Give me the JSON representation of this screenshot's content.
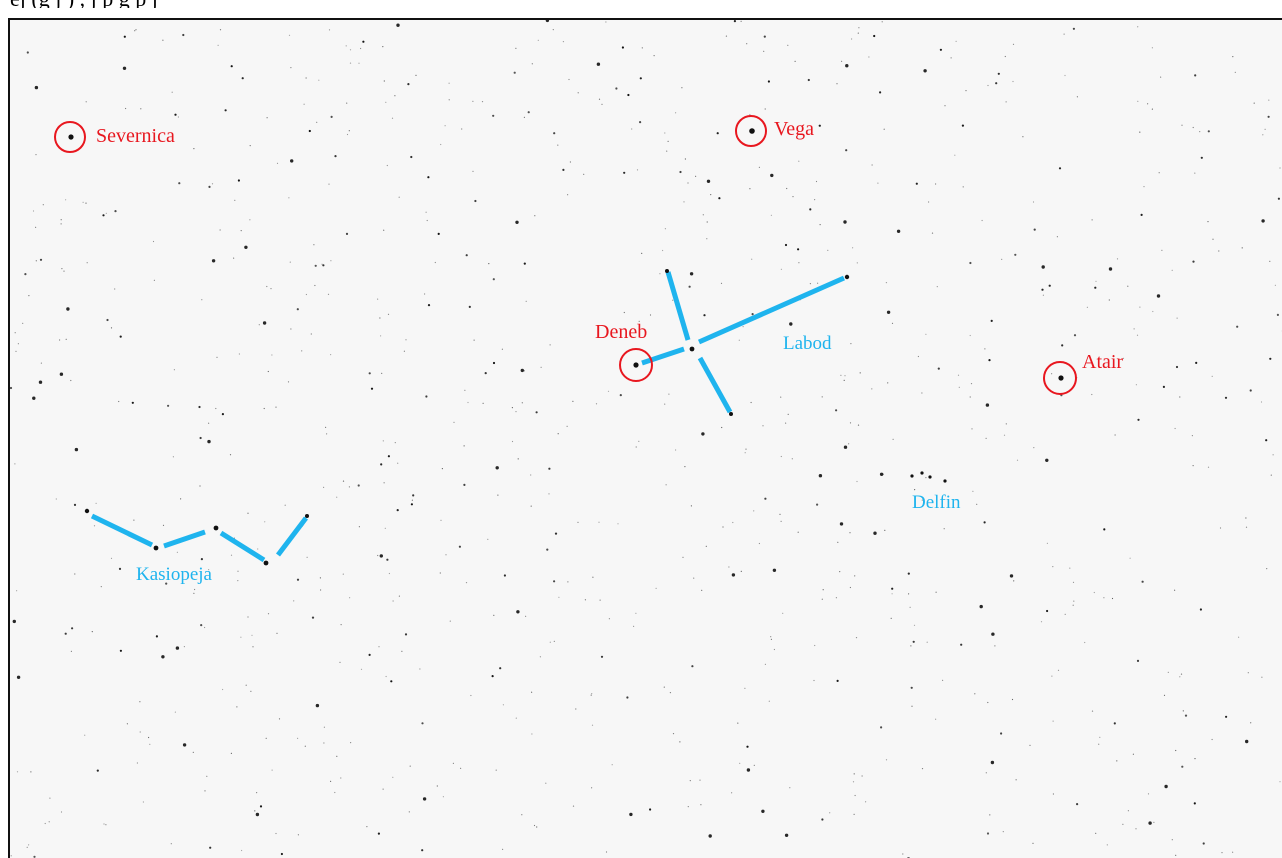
{
  "caption": "ej (g j ) , j p g p j",
  "colors": {
    "star_label": "#e8171f",
    "constellation": "#1fb4ee",
    "star": "#111111",
    "sky": "#f7f7f7"
  },
  "stars": [
    {
      "name": "Severnica"
    },
    {
      "name": "Vega"
    },
    {
      "name": "Deneb"
    },
    {
      "name": "Atair"
    }
  ],
  "constellations": [
    {
      "name": "Labod"
    },
    {
      "name": "Delfin"
    },
    {
      "name": "Kasiopeja"
    }
  ]
}
